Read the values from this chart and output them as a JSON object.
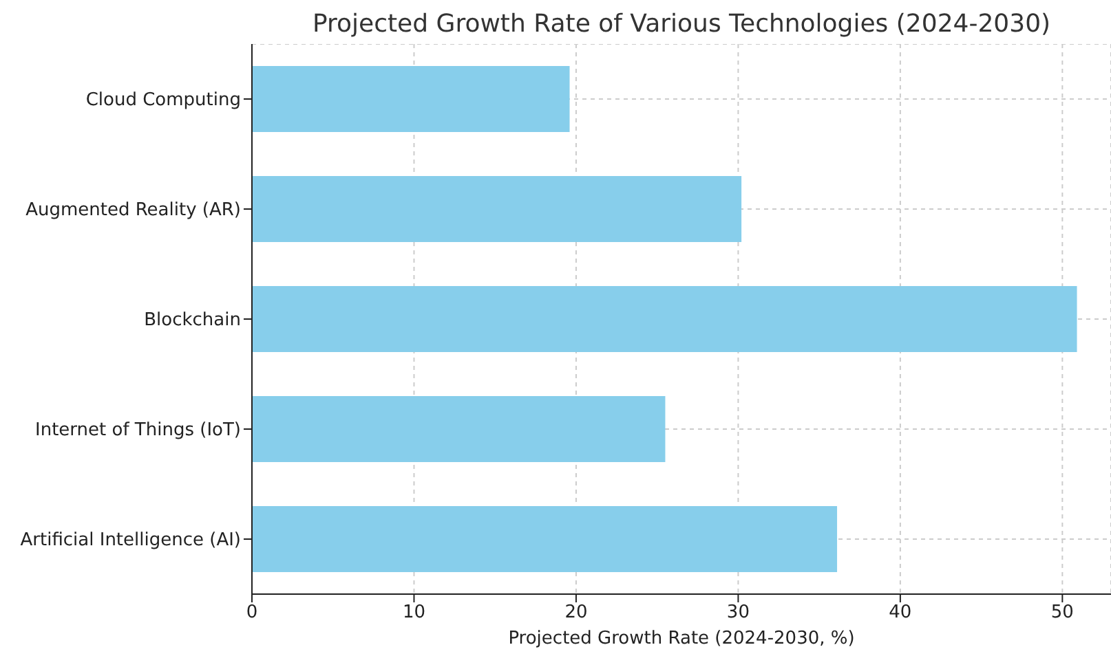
{
  "chart_data": {
    "type": "bar",
    "orientation": "horizontal",
    "title": "Projected Growth Rate of Various Technologies (2024-2030)",
    "xlabel": "Projected Growth Rate (2024-2030, %)",
    "categories": [
      "Cloud Computing",
      "Augmented Reality (AR)",
      "Blockchain",
      "Internet of Things (IoT)",
      "Artificial Intelligence (AI)"
    ],
    "values": [
      19.6,
      30.2,
      50.9,
      25.5,
      36.1
    ],
    "color": "#87ceeb",
    "xlim": [
      0,
      53
    ],
    "xticks": [
      0,
      10,
      20,
      30,
      40,
      50
    ],
    "grid": true
  }
}
